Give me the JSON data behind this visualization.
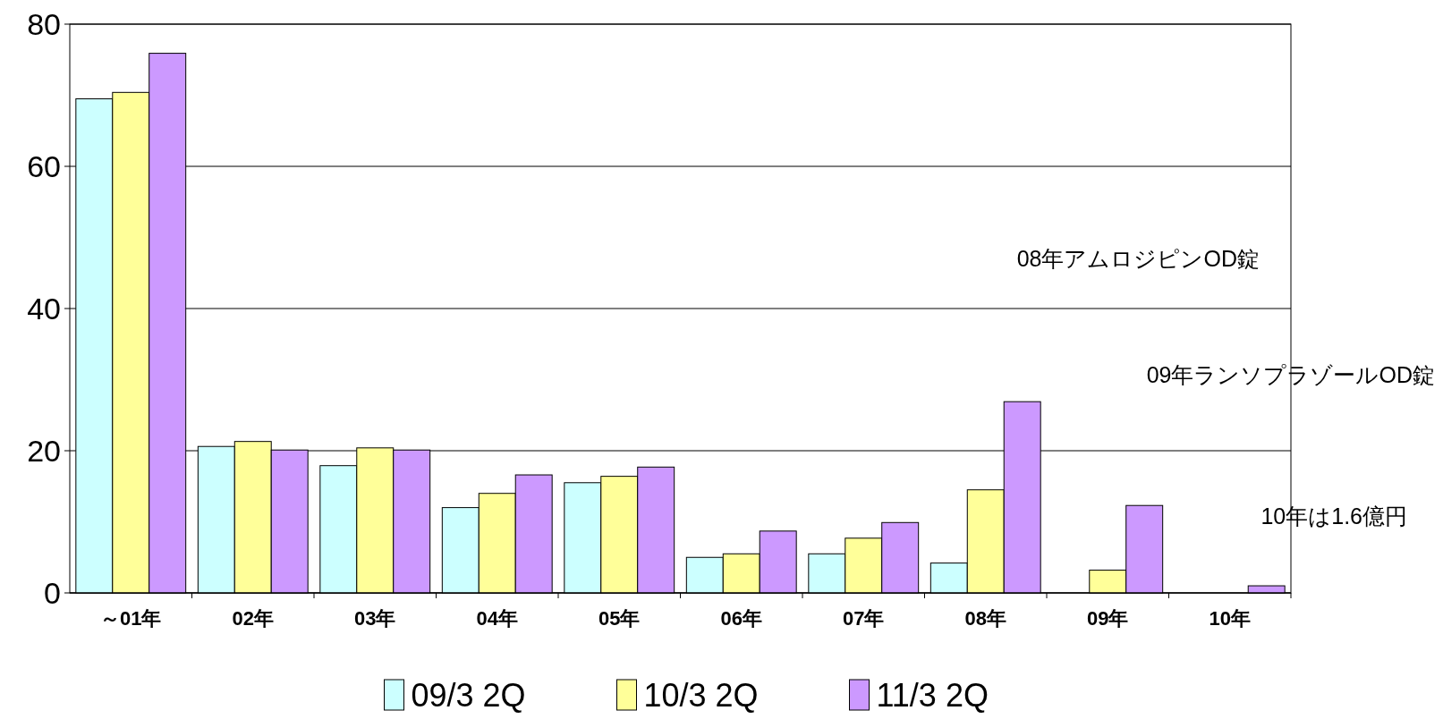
{
  "chart_data": {
    "type": "bar",
    "categories": [
      "～01年",
      "02年",
      "03年",
      "04年",
      "05年",
      "06年",
      "07年",
      "08年",
      "09年",
      "10年"
    ],
    "series": [
      {
        "name": "09/3 2Q",
        "color": "#ccffff",
        "values": [
          69.5,
          20.6,
          17.9,
          12.0,
          15.5,
          5.0,
          5.5,
          4.2,
          null,
          null
        ]
      },
      {
        "name": "10/3 2Q",
        "color": "#ffff99",
        "values": [
          70.4,
          21.3,
          20.4,
          14.0,
          16.4,
          5.5,
          7.7,
          14.5,
          3.2,
          null
        ]
      },
      {
        "name": "11/3 2Q",
        "color": "#cc99ff",
        "values": [
          75.9,
          20.1,
          20.1,
          16.6,
          17.7,
          8.7,
          9.9,
          26.9,
          12.3,
          1.0
        ]
      }
    ],
    "ylim": [
      0,
      80
    ],
    "yticks": [
      0,
      20,
      40,
      60,
      80
    ],
    "grid": "y",
    "legend": "bottom",
    "annotations": [
      "08年アムロジピンOD錠",
      "09年ランソプラゾールOD錠",
      "10年は1.6億円"
    ]
  }
}
